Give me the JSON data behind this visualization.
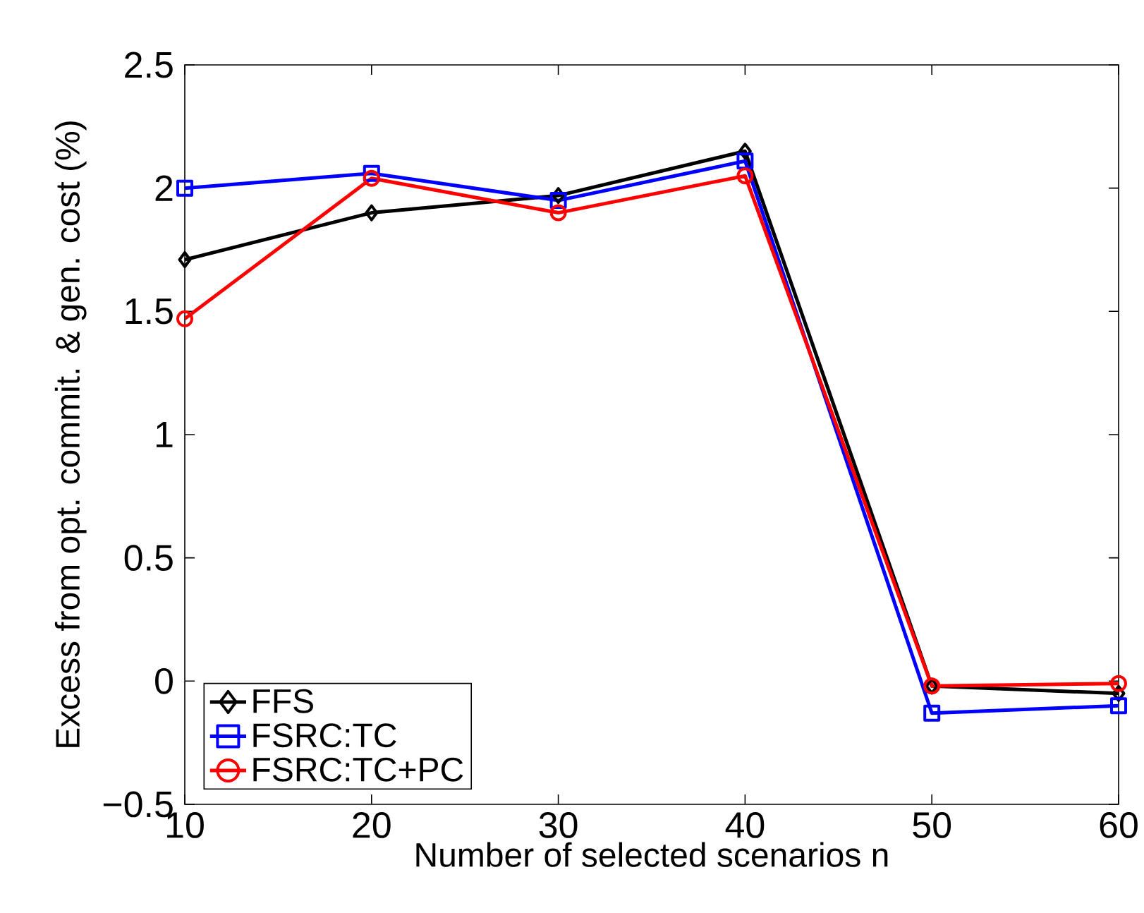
{
  "chart_data": {
    "type": "line",
    "xlabel": "Number of selected scenarios n",
    "ylabel": "Excess from opt. commit. & gen. cost (%)",
    "x": [
      10,
      20,
      30,
      40,
      50,
      60
    ],
    "series": [
      {
        "name": "FFS",
        "color": "#000000",
        "marker": "diamond",
        "values": [
          1.71,
          1.9,
          1.97,
          2.15,
          -0.02,
          -0.05
        ]
      },
      {
        "name": "FSRC:TC",
        "color": "#0000ff",
        "marker": "square",
        "values": [
          2.0,
          2.06,
          1.95,
          2.11,
          -0.13,
          -0.1
        ]
      },
      {
        "name": "FSRC:TC+PC",
        "color": "#ff0000",
        "marker": "circle",
        "values": [
          1.47,
          2.04,
          1.9,
          2.05,
          -0.02,
          -0.01
        ]
      }
    ],
    "xlim": [
      10,
      60
    ],
    "xticks": [
      10,
      20,
      30,
      40,
      50,
      60
    ],
    "ylim": [
      -0.5,
      2.5
    ],
    "yticks": [
      {
        "value": -0.5,
        "label": "−0.5"
      },
      0,
      0.5,
      1,
      1.5,
      2,
      2.5
    ],
    "legend": "bottom left",
    "grid": false,
    "line_style": "solid"
  }
}
